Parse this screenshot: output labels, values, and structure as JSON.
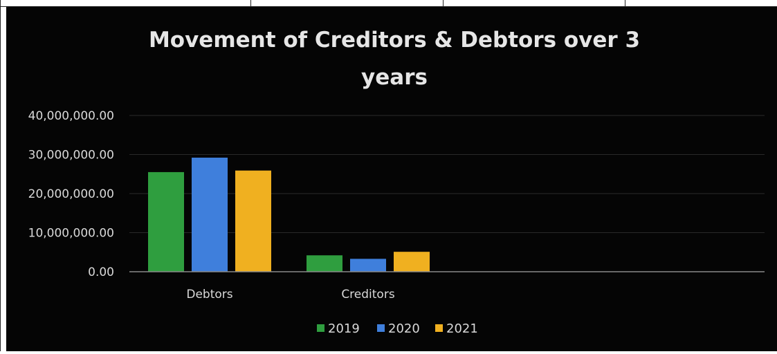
{
  "chart_data": {
    "type": "bar",
    "title": "Movement of Creditors & Debtors over 3 years",
    "title_lines": [
      "Movement of Creditors & Debtors over 3",
      "years"
    ],
    "categories": [
      "Debtors",
      "Creditors"
    ],
    "series": [
      {
        "name": "2019",
        "values": [
          25500000,
          4200000
        ],
        "color": "#2f9e3f"
      },
      {
        "name": "2020",
        "values": [
          29200000,
          3300000
        ],
        "color": "#3f7fdc"
      },
      {
        "name": "2021",
        "values": [
          25900000,
          5100000
        ],
        "color": "#f0b020"
      }
    ],
    "ylim": [
      0,
      40000000
    ],
    "y_ticks": [
      0,
      10000000,
      20000000,
      30000000,
      40000000
    ],
    "y_tick_labels": [
      "0.00",
      "10,000,000.00",
      "20,000,000.00",
      "30,000,000.00",
      "40,000,000.00"
    ],
    "xlabel": "",
    "ylabel": "",
    "grid": true,
    "legend_position": "bottom",
    "background": "#050505",
    "text_color": "#d9d9d9",
    "title_color": "#e6e6e6",
    "grid_color": "#2a2a2a",
    "axis_color": "#8a8a8a"
  }
}
